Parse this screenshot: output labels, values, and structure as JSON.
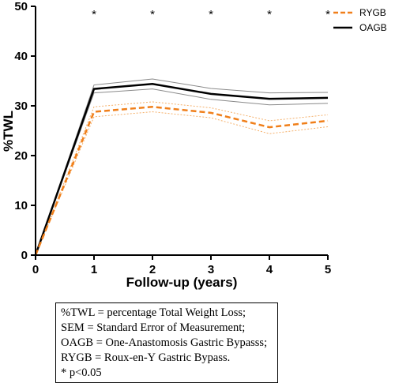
{
  "chart_data": {
    "type": "line",
    "title": "",
    "xlabel": "Follow-up  (years)",
    "ylabel": "%TWL",
    "x": [
      0,
      1,
      2,
      3,
      4,
      5
    ],
    "xticks": [
      "0",
      "1",
      "2",
      "3",
      "4",
      "5"
    ],
    "yticks": [
      "0",
      "10",
      "20",
      "30",
      "40",
      "50"
    ],
    "xlim": [
      0,
      5
    ],
    "ylim": [
      0,
      50
    ],
    "grid": false,
    "legend_position": "top-right",
    "series": [
      {
        "name": "RYGB",
        "color": "#f07f1a",
        "style": "dashed",
        "values": [
          0,
          28.8,
          29.8,
          28.6,
          25.7,
          27.0
        ],
        "upper": [
          0,
          29.8,
          30.8,
          29.6,
          27.0,
          28.2
        ],
        "lower": [
          0,
          27.8,
          28.8,
          27.6,
          24.4,
          25.8
        ]
      },
      {
        "name": "OAGB",
        "color": "#000000",
        "style": "solid",
        "values": [
          0,
          33.4,
          34.4,
          32.4,
          31.4,
          31.6
        ],
        "upper": [
          0,
          34.2,
          35.4,
          33.5,
          32.6,
          32.7
        ],
        "lower": [
          0,
          32.6,
          33.4,
          31.3,
          30.2,
          30.5
        ]
      }
    ],
    "significance": {
      "marker": "*",
      "x": [
        1,
        2,
        3,
        4,
        5
      ]
    },
    "notes": [
      "%TWL = percentage  Total  Weight Loss;",
      "SEM = Standard Error of Measurement;",
      "OAGB = One-Anastomosis Gastric  Bypasss;",
      "RYGB = Roux-en-Y Gastric Bypass.",
      "* p<0.05"
    ]
  }
}
